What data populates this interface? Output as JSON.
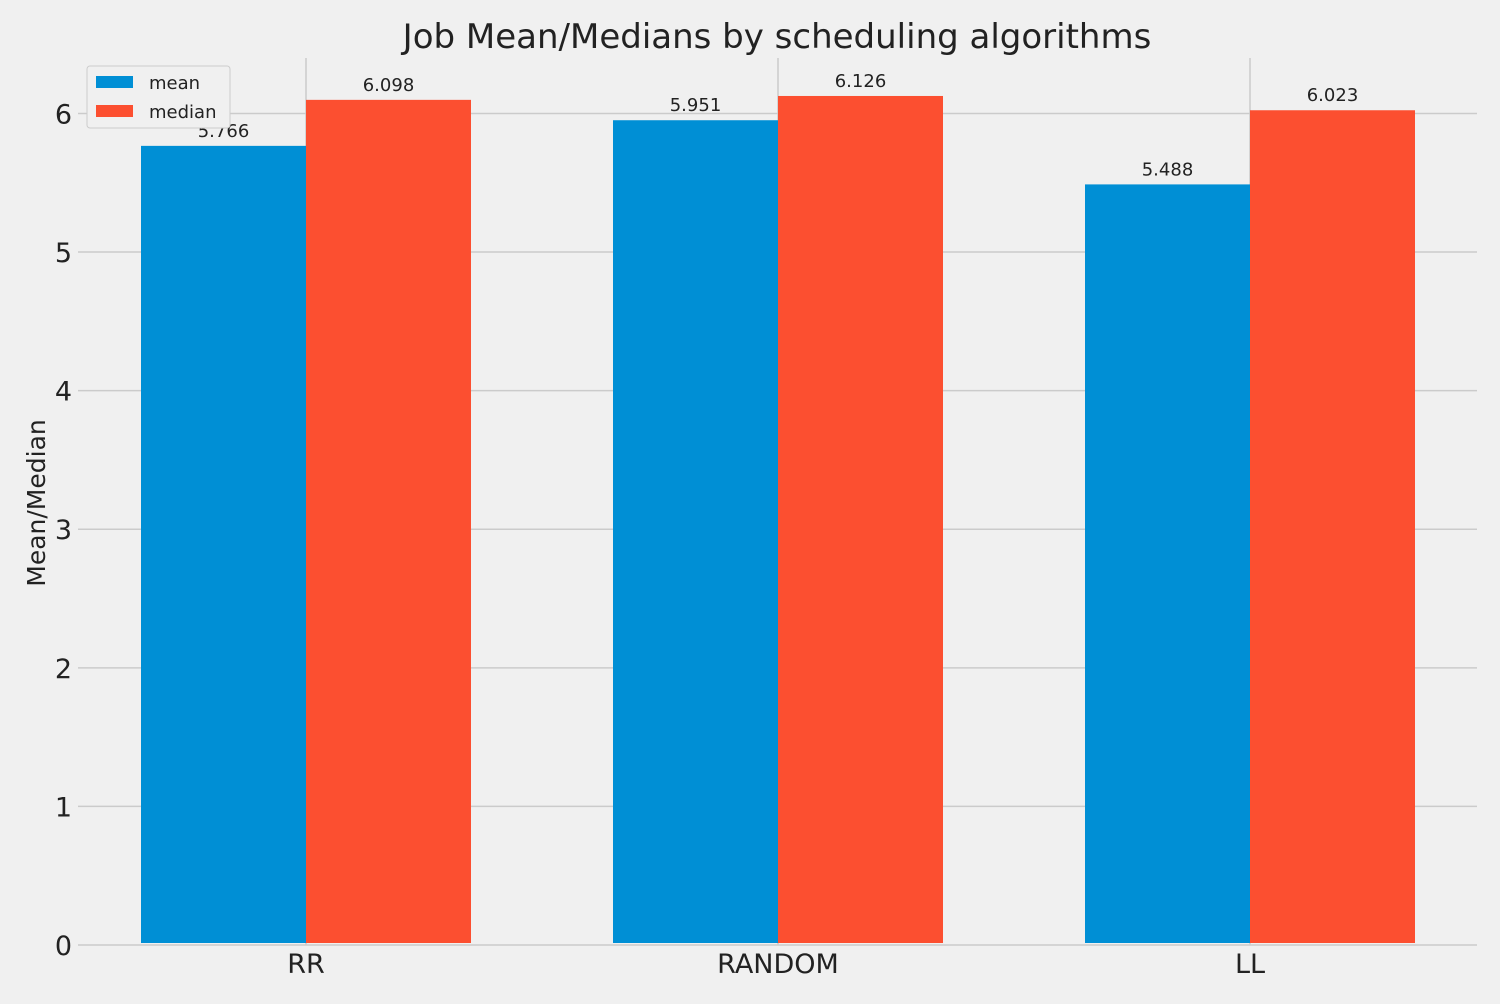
{
  "chart_data": {
    "type": "bar",
    "title": "Job Mean/Medians by scheduling algorithms",
    "xlabel": "",
    "ylabel": "Mean/Median",
    "categories": [
      "RR",
      "RANDOM",
      "LL"
    ],
    "series": [
      {
        "name": "mean",
        "values": [
          5.766,
          5.951,
          5.488
        ],
        "labels": [
          "5.766",
          "5.951",
          "5.488"
        ],
        "color": "#008fd5"
      },
      {
        "name": "median",
        "values": [
          6.098,
          6.126,
          6.023
        ],
        "labels": [
          "6.098",
          "6.126",
          "6.023"
        ],
        "color": "#fc4f30"
      }
    ],
    "ylim": [
      0,
      6.4
    ],
    "yticks": [
      0,
      1,
      2,
      3,
      4,
      5,
      6
    ],
    "ytick_labels": [
      "0",
      "1",
      "2",
      "3",
      "4",
      "5",
      "6"
    ],
    "grid": true,
    "legend_position": "top-left",
    "background_color": "#f0f0f0",
    "grid_color": "#cbcbcb"
  }
}
